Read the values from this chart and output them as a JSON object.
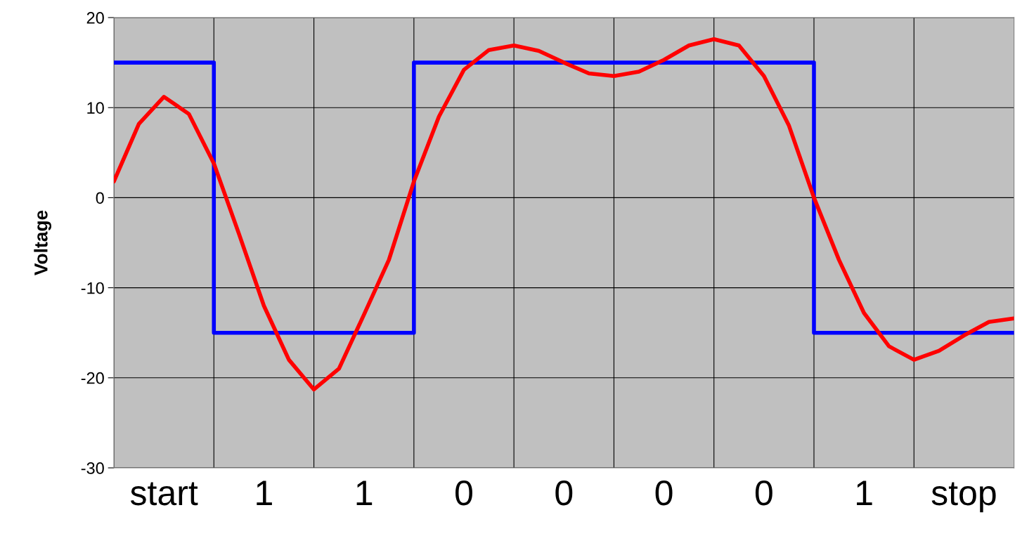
{
  "chart_data": {
    "type": "line",
    "ylabel": "Voltage",
    "categories": [
      null,
      null,
      "start",
      null,
      null,
      null,
      "1",
      null,
      null,
      null,
      "1",
      null,
      null,
      null,
      "0",
      null,
      null,
      null,
      "0",
      null,
      null,
      null,
      "0",
      null,
      null,
      null,
      "0",
      null,
      null,
      null,
      "1",
      null,
      null,
      null,
      "stop",
      null,
      null
    ],
    "ylim": [
      -30,
      20
    ],
    "yticks": [
      -30,
      -20,
      -10,
      0,
      10,
      20
    ],
    "grid": true,
    "series": [
      {
        "type": "step",
        "color": "#0000ff",
        "values": [
          15,
          15,
          15,
          15,
          -15,
          -15,
          -15,
          -15,
          -15,
          -15,
          -15,
          -15,
          15,
          15,
          15,
          15,
          15,
          15,
          15,
          15,
          15,
          15,
          15,
          15,
          15,
          15,
          15,
          15,
          -15,
          -15,
          -15,
          -15,
          -15,
          -15,
          -15,
          -15,
          -15
        ]
      },
      {
        "color": "#ff0000",
        "values": [
          1.8,
          8.2,
          11.2,
          9.3,
          3.8,
          -4.0,
          -12.0,
          -18.0,
          -21.3,
          -19.0,
          -13.0,
          -6.9,
          1.8,
          9.0,
          14.2,
          16.4,
          16.9,
          16.3,
          15.0,
          13.8,
          13.5,
          14.0,
          15.3,
          16.9,
          17.6,
          16.9,
          13.5,
          8.0,
          0,
          -6.9,
          -12.8,
          -16.5,
          -18.0,
          -17.0,
          -15.3,
          -13.8,
          -13.4
        ]
      }
    ]
  }
}
